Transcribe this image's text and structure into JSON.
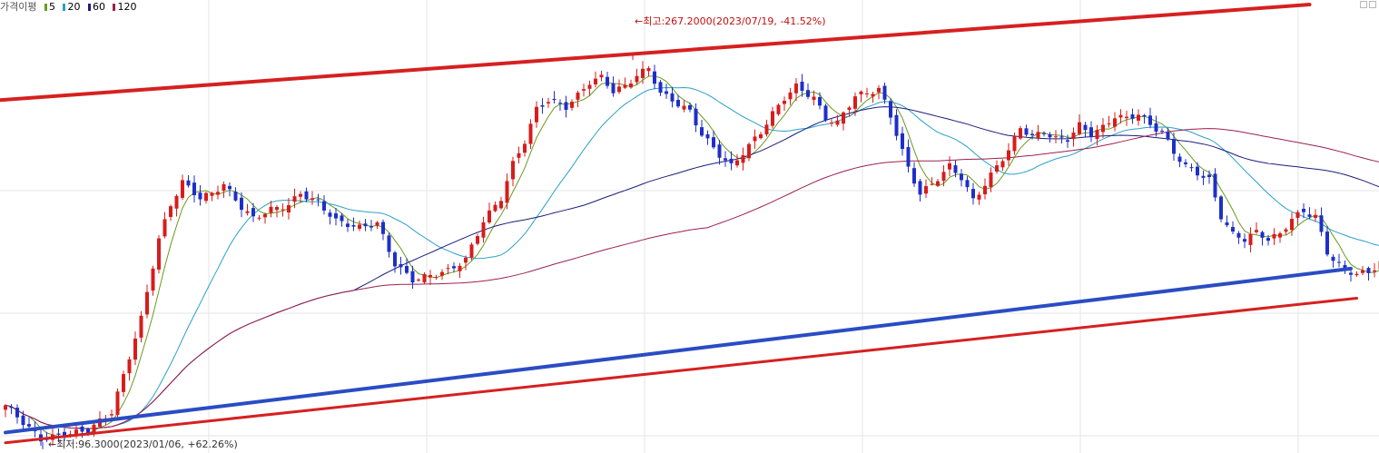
{
  "legend": {
    "title": "가격이평",
    "items": [
      {
        "label": "5",
        "color": "#6a9a20"
      },
      {
        "label": "20",
        "color": "#2aa0c8"
      },
      {
        "label": "60",
        "color": "#1c1c7c"
      },
      {
        "label": "120",
        "color": "#9c2050"
      }
    ]
  },
  "annotations": {
    "high": "←최고:267.2000(2023/07/19, -41.52%)",
    "low": "←최저:96.3000(2023/01/06, +62.26%)"
  },
  "colors": {
    "up": "#d81c1c",
    "down": "#1e2fc8",
    "trend_red": "#d62020",
    "trend_blue": "#2a4cc4",
    "ma5": "#6a9a20",
    "ma20": "#2aa0c8",
    "ma60": "#1c1c7c",
    "ma120": "#9c2050",
    "grid": "#e6e6e6"
  },
  "chart_data": {
    "type": "candlestick",
    "title": "",
    "xlabel": "",
    "ylabel": "",
    "ylim": [
      93,
      292
    ],
    "grid": true,
    "legend_placement": "top-left",
    "high": {
      "value": 267.2,
      "date": "2023/07/19",
      "pct": -41.52
    },
    "low": {
      "value": 96.3,
      "date": "2023/01/06",
      "pct": 62.26
    },
    "anchors": [
      [
        0,
        114
      ],
      [
        2,
        109
      ],
      [
        6,
        99
      ],
      [
        10,
        101
      ],
      [
        14,
        103
      ],
      [
        18,
        111
      ],
      [
        20,
        127
      ],
      [
        23,
        152
      ],
      [
        26,
        187
      ],
      [
        28,
        202
      ],
      [
        30,
        212
      ],
      [
        33,
        205
      ],
      [
        35,
        207
      ],
      [
        37,
        211
      ],
      [
        40,
        201
      ],
      [
        42,
        196
      ],
      [
        45,
        200
      ],
      [
        48,
        202
      ],
      [
        50,
        207
      ],
      [
        53,
        203
      ],
      [
        56,
        195
      ],
      [
        60,
        192
      ],
      [
        63,
        194
      ],
      [
        66,
        176
      ],
      [
        69,
        169
      ],
      [
        72,
        171
      ],
      [
        75,
        173
      ],
      [
        78,
        178
      ],
      [
        81,
        195
      ],
      [
        84,
        205
      ],
      [
        86,
        220
      ],
      [
        88,
        230
      ],
      [
        90,
        244
      ],
      [
        92,
        248
      ],
      [
        95,
        245
      ],
      [
        97,
        250
      ],
      [
        99,
        256
      ],
      [
        101,
        258
      ],
      [
        103,
        252
      ],
      [
        105,
        254
      ],
      [
        107,
        259
      ],
      [
        109,
        262
      ],
      [
        111,
        251
      ],
      [
        113,
        248
      ],
      [
        116,
        243
      ],
      [
        118,
        233
      ],
      [
        121,
        224
      ],
      [
        123,
        219
      ],
      [
        125,
        225
      ],
      [
        128,
        234
      ],
      [
        130,
        242
      ],
      [
        132,
        249
      ],
      [
        134,
        254
      ],
      [
        137,
        249
      ],
      [
        139,
        240
      ],
      [
        141,
        238
      ],
      [
        144,
        250
      ],
      [
        146,
        251
      ],
      [
        148,
        253
      ],
      [
        150,
        241
      ],
      [
        153,
        218
      ],
      [
        155,
        207
      ],
      [
        157,
        211
      ],
      [
        160,
        219
      ],
      [
        162,
        214
      ],
      [
        164,
        204
      ],
      [
        166,
        211
      ],
      [
        168,
        219
      ],
      [
        170,
        226
      ],
      [
        172,
        236
      ],
      [
        174,
        232
      ],
      [
        176,
        234
      ],
      [
        178,
        231
      ],
      [
        180,
        231
      ],
      [
        182,
        237
      ],
      [
        184,
        233
      ],
      [
        186,
        236
      ],
      [
        188,
        241
      ],
      [
        190,
        240
      ],
      [
        192,
        242
      ],
      [
        194,
        237
      ],
      [
        196,
        234
      ],
      [
        198,
        225
      ],
      [
        200,
        219
      ],
      [
        202,
        216
      ],
      [
        204,
        213
      ],
      [
        206,
        197
      ],
      [
        208,
        189
      ],
      [
        210,
        187
      ],
      [
        212,
        190
      ],
      [
        214,
        187
      ],
      [
        216,
        189
      ],
      [
        218,
        196
      ],
      [
        220,
        199
      ],
      [
        222,
        197
      ],
      [
        224,
        181
      ],
      [
        227,
        173
      ],
      [
        229,
        172
      ],
      [
        231,
        172
      ],
      [
        233,
        177
      ]
    ]
  }
}
